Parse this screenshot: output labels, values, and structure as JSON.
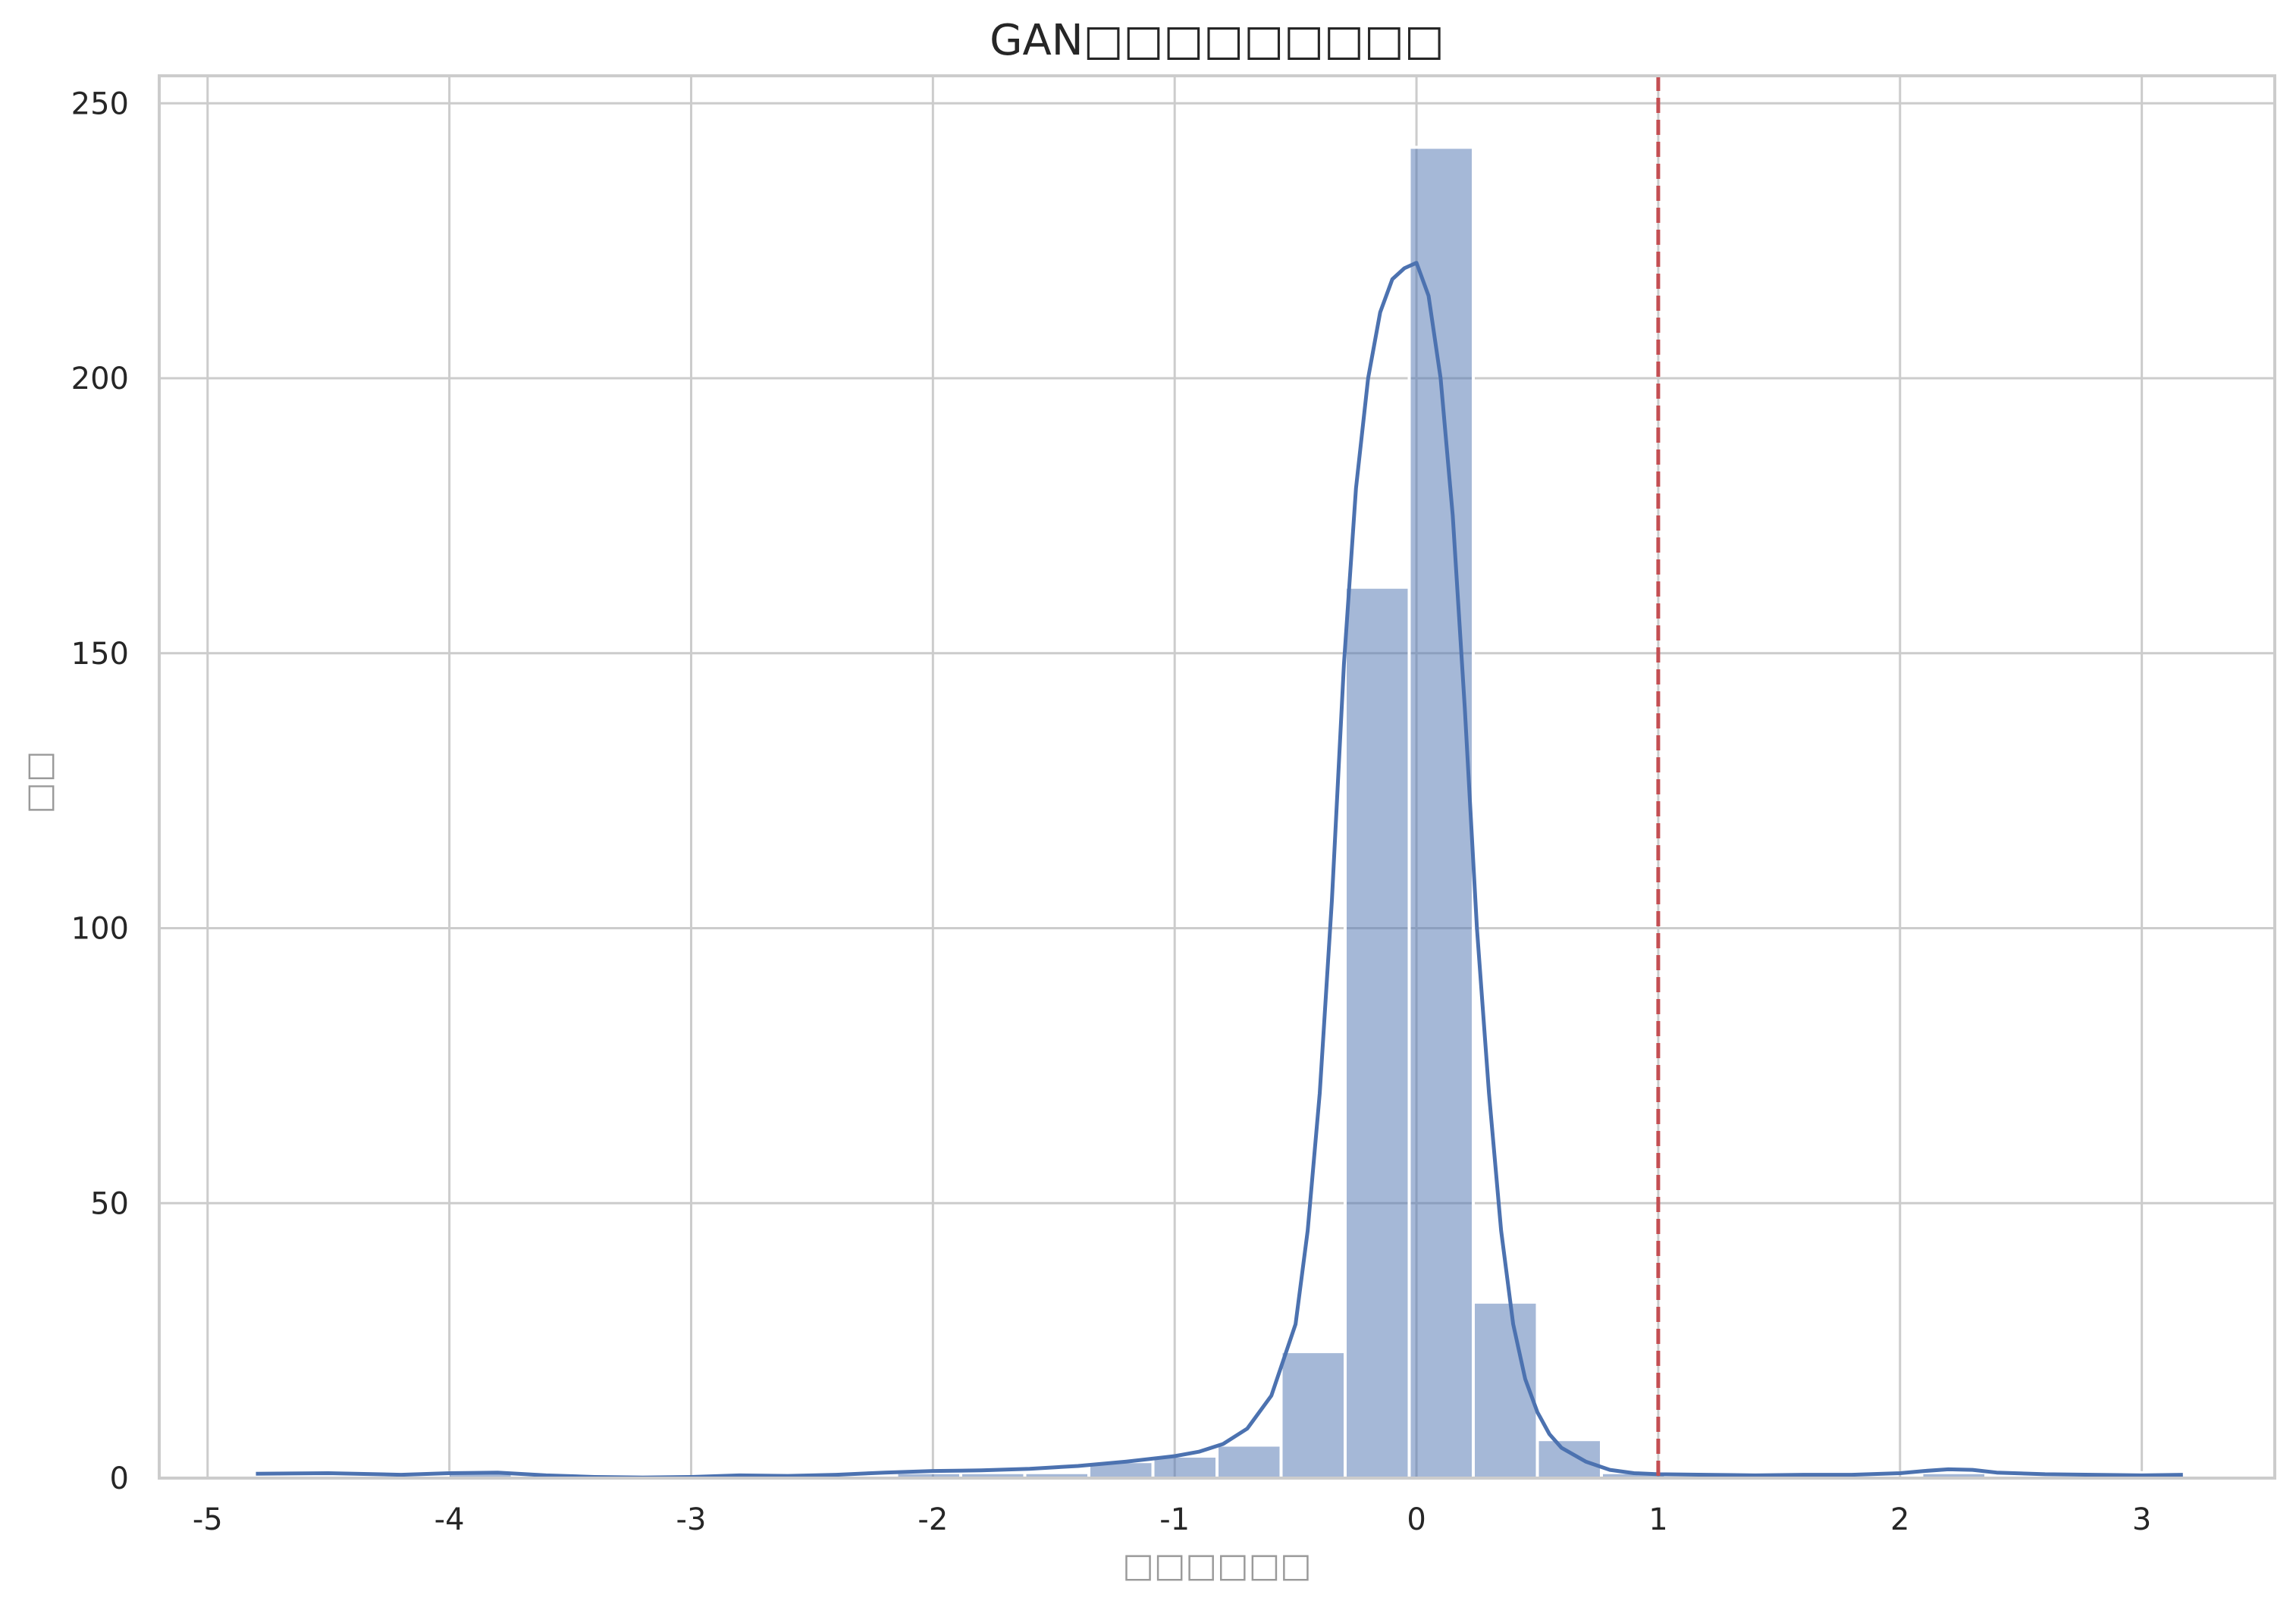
{
  "chart_data": {
    "type": "bar",
    "title": "GAN□□□□□□□□□",
    "xlabel": "□□□□□□",
    "ylabel": "□□",
    "xlim": [
      -5.2,
      3.55
    ],
    "ylim": [
      0,
      255
    ],
    "x_ticks": [
      -5,
      -4,
      -3,
      -2,
      -1,
      0,
      1,
      2,
      3
    ],
    "y_ticks": [
      0,
      50,
      100,
      150,
      200,
      250
    ],
    "grid": true,
    "bar_color": "#4c72b0",
    "kde_color": "#4c72b0",
    "threshold_color": "#c44e52",
    "threshold_x": 1.0,
    "bins": [
      {
        "x0": -4.8,
        "x1": -4.535,
        "count": 0
      },
      {
        "x0": -4.535,
        "x1": -4.27,
        "count": 0
      },
      {
        "x0": -4.27,
        "x1": -4.005,
        "count": 0
      },
      {
        "x0": -4.005,
        "x1": -3.74,
        "count": 1
      },
      {
        "x0": -3.74,
        "x1": -3.475,
        "count": 0
      },
      {
        "x0": -3.475,
        "x1": -3.21,
        "count": 0
      },
      {
        "x0": -3.21,
        "x1": -2.945,
        "count": 0
      },
      {
        "x0": -2.945,
        "x1": -2.68,
        "count": 0
      },
      {
        "x0": -2.68,
        "x1": -2.415,
        "count": 0
      },
      {
        "x0": -2.415,
        "x1": -2.15,
        "count": 0
      },
      {
        "x0": -2.15,
        "x1": -1.885,
        "count": 1
      },
      {
        "x0": -1.885,
        "x1": -1.62,
        "count": 1
      },
      {
        "x0": -1.62,
        "x1": -1.355,
        "count": 1
      },
      {
        "x0": -1.355,
        "x1": -1.09,
        "count": 3
      },
      {
        "x0": -1.09,
        "x1": -0.825,
        "count": 4
      },
      {
        "x0": -0.825,
        "x1": -0.56,
        "count": 6
      },
      {
        "x0": -0.56,
        "x1": -0.295,
        "count": 23
      },
      {
        "x0": -0.295,
        "x1": -0.03,
        "count": 162
      },
      {
        "x0": -0.03,
        "x1": 0.235,
        "count": 242
      },
      {
        "x0": 0.235,
        "x1": 0.5,
        "count": 32
      },
      {
        "x0": 0.5,
        "x1": 0.765,
        "count": 7
      },
      {
        "x0": 0.765,
        "x1": 1.03,
        "count": 1
      },
      {
        "x0": 1.03,
        "x1": 1.295,
        "count": 0
      },
      {
        "x0": 1.295,
        "x1": 1.56,
        "count": 0
      },
      {
        "x0": 1.56,
        "x1": 1.825,
        "count": 0
      },
      {
        "x0": 1.825,
        "x1": 2.09,
        "count": 0
      },
      {
        "x0": 2.09,
        "x1": 2.355,
        "count": 1
      },
      {
        "x0": 2.355,
        "x1": 2.62,
        "count": 0
      },
      {
        "x0": 2.62,
        "x1": 2.885,
        "count": 0
      },
      {
        "x0": 2.885,
        "x1": 3.15,
        "count": 1
      }
    ],
    "kde": {
      "x": [
        -4.8,
        -4.5,
        -4.2,
        -4.0,
        -3.8,
        -3.6,
        -3.4,
        -3.2,
        -3.0,
        -2.8,
        -2.6,
        -2.4,
        -2.2,
        -2.0,
        -1.8,
        -1.6,
        -1.4,
        -1.2,
        -1.0,
        -0.9,
        -0.8,
        -0.7,
        -0.6,
        -0.5,
        -0.45,
        -0.4,
        -0.35,
        -0.3,
        -0.25,
        -0.2,
        -0.15,
        -0.1,
        -0.05,
        0.0,
        0.05,
        0.1,
        0.15,
        0.2,
        0.25,
        0.3,
        0.35,
        0.4,
        0.45,
        0.5,
        0.55,
        0.6,
        0.7,
        0.8,
        0.9,
        1.0,
        1.2,
        1.4,
        1.6,
        1.8,
        2.0,
        2.1,
        2.2,
        2.3,
        2.4,
        2.6,
        2.8,
        3.0,
        3.17
      ],
      "y": [
        0.8,
        0.9,
        0.6,
        0.9,
        1.0,
        0.5,
        0.2,
        0.1,
        0.2,
        0.5,
        0.4,
        0.6,
        1.0,
        1.3,
        1.4,
        1.7,
        2.2,
        3.0,
        4.0,
        4.8,
        6.2,
        9.0,
        15.0,
        28.0,
        45.0,
        70.0,
        105.0,
        148.0,
        180.0,
        200.0,
        212.0,
        218.0,
        220.0,
        221.0,
        215.0,
        200.0,
        175.0,
        140.0,
        100.0,
        70.0,
        45.0,
        28.0,
        18.0,
        12.0,
        8.0,
        5.5,
        3.0,
        1.5,
        0.9,
        0.7,
        0.6,
        0.5,
        0.6,
        0.6,
        0.9,
        1.3,
        1.6,
        1.5,
        1.0,
        0.7,
        0.6,
        0.5,
        0.6
      ]
    }
  }
}
